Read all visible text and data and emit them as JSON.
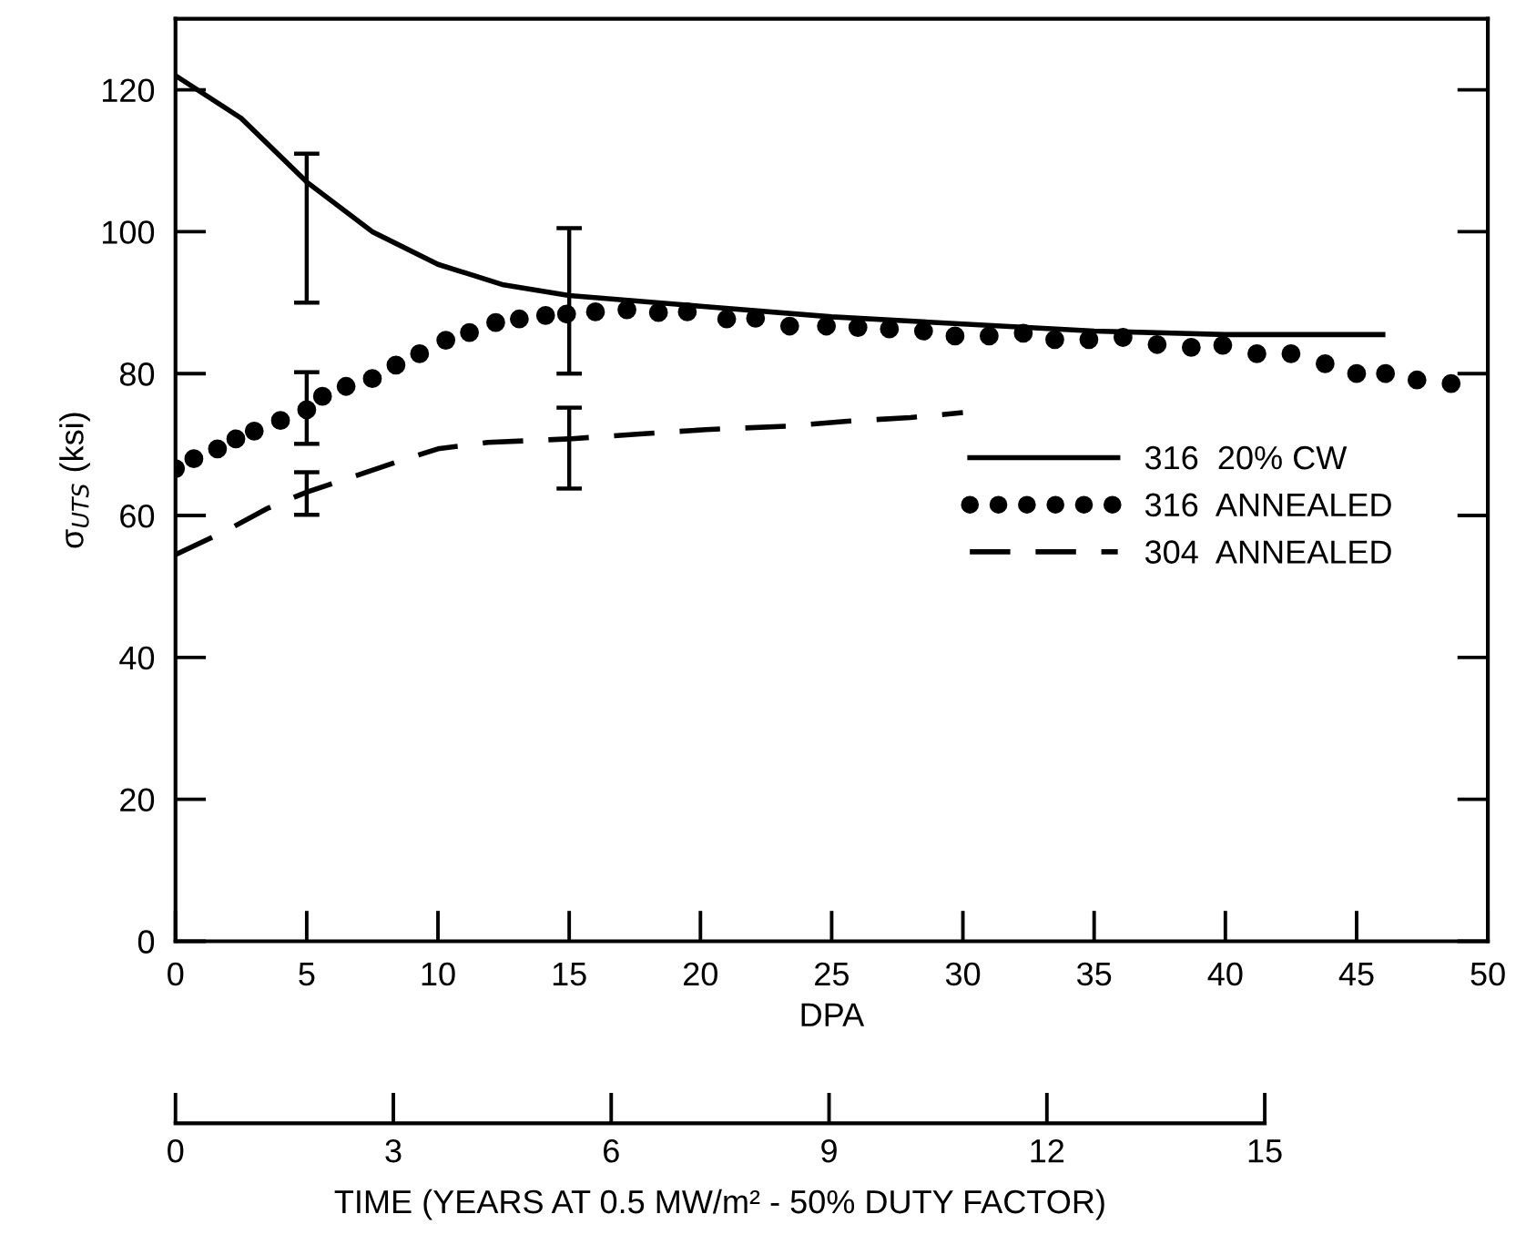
{
  "chart_data": {
    "type": "line",
    "xlabel": "DPA",
    "ylabel": "σ$_{UTS}$ (ksi)",
    "x2label": "TIME (YEARS AT 0.5 MW/m² - 50% DUTY FACTOR)",
    "xlim": [
      0,
      50
    ],
    "xticks": [
      0,
      5,
      10,
      15,
      20,
      25,
      30,
      35,
      40,
      45,
      50
    ],
    "ylim": [
      0,
      130
    ],
    "yticks": [
      0,
      20,
      40,
      60,
      80,
      100,
      120
    ],
    "x2lim": [
      0,
      15
    ],
    "x2ticks": [
      0,
      3,
      6,
      9,
      12,
      15
    ],
    "grid": false,
    "legend": "right",
    "series": [
      {
        "name": "316  20% CW",
        "line_style": "solid",
        "color": "#000000",
        "x": [
          0,
          2.5,
          5,
          7.5,
          10,
          12.5,
          15,
          20,
          25,
          30,
          35,
          40,
          46
        ],
        "values": [
          122,
          116,
          107,
          100,
          95.4,
          92.5,
          91,
          89.5,
          88,
          87,
          86,
          85.5,
          85.5
        ],
        "errors": [
          null,
          null,
          [
            90,
            111
          ],
          null,
          null,
          null,
          [
            80,
            100.5
          ],
          null,
          null,
          null,
          null,
          null,
          null
        ]
      },
      {
        "name": "316  ANNEALED",
        "type": "scatter",
        "marker": "circle",
        "color": "#000000",
        "x": [
          0,
          0.7,
          1.6,
          2.3,
          3,
          4,
          5,
          5.6,
          6.5,
          7.5,
          8.4,
          9.3,
          10.3,
          11.2,
          12.2,
          13.1,
          14.1,
          14.9,
          16,
          17.2,
          18.4,
          19.5,
          21,
          22.1,
          23.4,
          24.8,
          26,
          27.2,
          28.5,
          29.7,
          31,
          32.3,
          33.5,
          34.8,
          36.1,
          37.4,
          38.7,
          39.9,
          41.2,
          42.5,
          43.8,
          45,
          46.1,
          47.3,
          48.6
        ],
        "values": [
          66.6,
          68,
          69.4,
          70.8,
          71.9,
          73.4,
          74.9,
          76.8,
          78.2,
          79.3,
          81.2,
          82.8,
          84.7,
          85.8,
          87.2,
          87.7,
          88.2,
          88.4,
          88.7,
          89,
          88.6,
          88.7,
          87.7,
          87.8,
          86.7,
          86.7,
          86.5,
          86.3,
          86,
          85.3,
          85.3,
          85.7,
          84.8,
          84.8,
          85.1,
          84.1,
          83.7,
          84,
          82.8,
          82.8,
          81.4,
          80,
          80,
          79.1,
          78.6
        ],
        "errors": [
          null,
          null,
          null,
          null,
          null,
          null,
          [
            70.1,
            80.2
          ],
          null,
          null,
          null,
          null,
          null,
          null,
          null,
          null,
          null,
          null,
          null,
          null,
          null,
          null,
          null,
          null,
          null,
          null,
          null,
          null,
          null,
          null,
          null,
          null,
          null,
          null,
          null,
          null,
          null,
          null,
          null,
          null,
          null,
          null,
          null,
          null,
          null,
          null
        ]
      },
      {
        "name": "304  ANNEALED",
        "line_style": "dashed",
        "color": "#000000",
        "x": [
          0,
          1.9,
          3.5,
          5,
          6.7,
          8.4,
          10,
          11.9,
          15,
          17.7,
          20.2,
          23.3,
          25.6,
          28,
          30
        ],
        "values": [
          54.5,
          57.8,
          61,
          63.3,
          65.4,
          67.5,
          69.4,
          70.3,
          70.8,
          71.5,
          72.1,
          72.6,
          73.3,
          73.8,
          74.5
        ],
        "errors": [
          null,
          null,
          null,
          [
            60.1,
            66.1
          ],
          null,
          null,
          null,
          null,
          [
            63.8,
            75.2
          ],
          null,
          null,
          null,
          null,
          null,
          null
        ]
      }
    ]
  }
}
